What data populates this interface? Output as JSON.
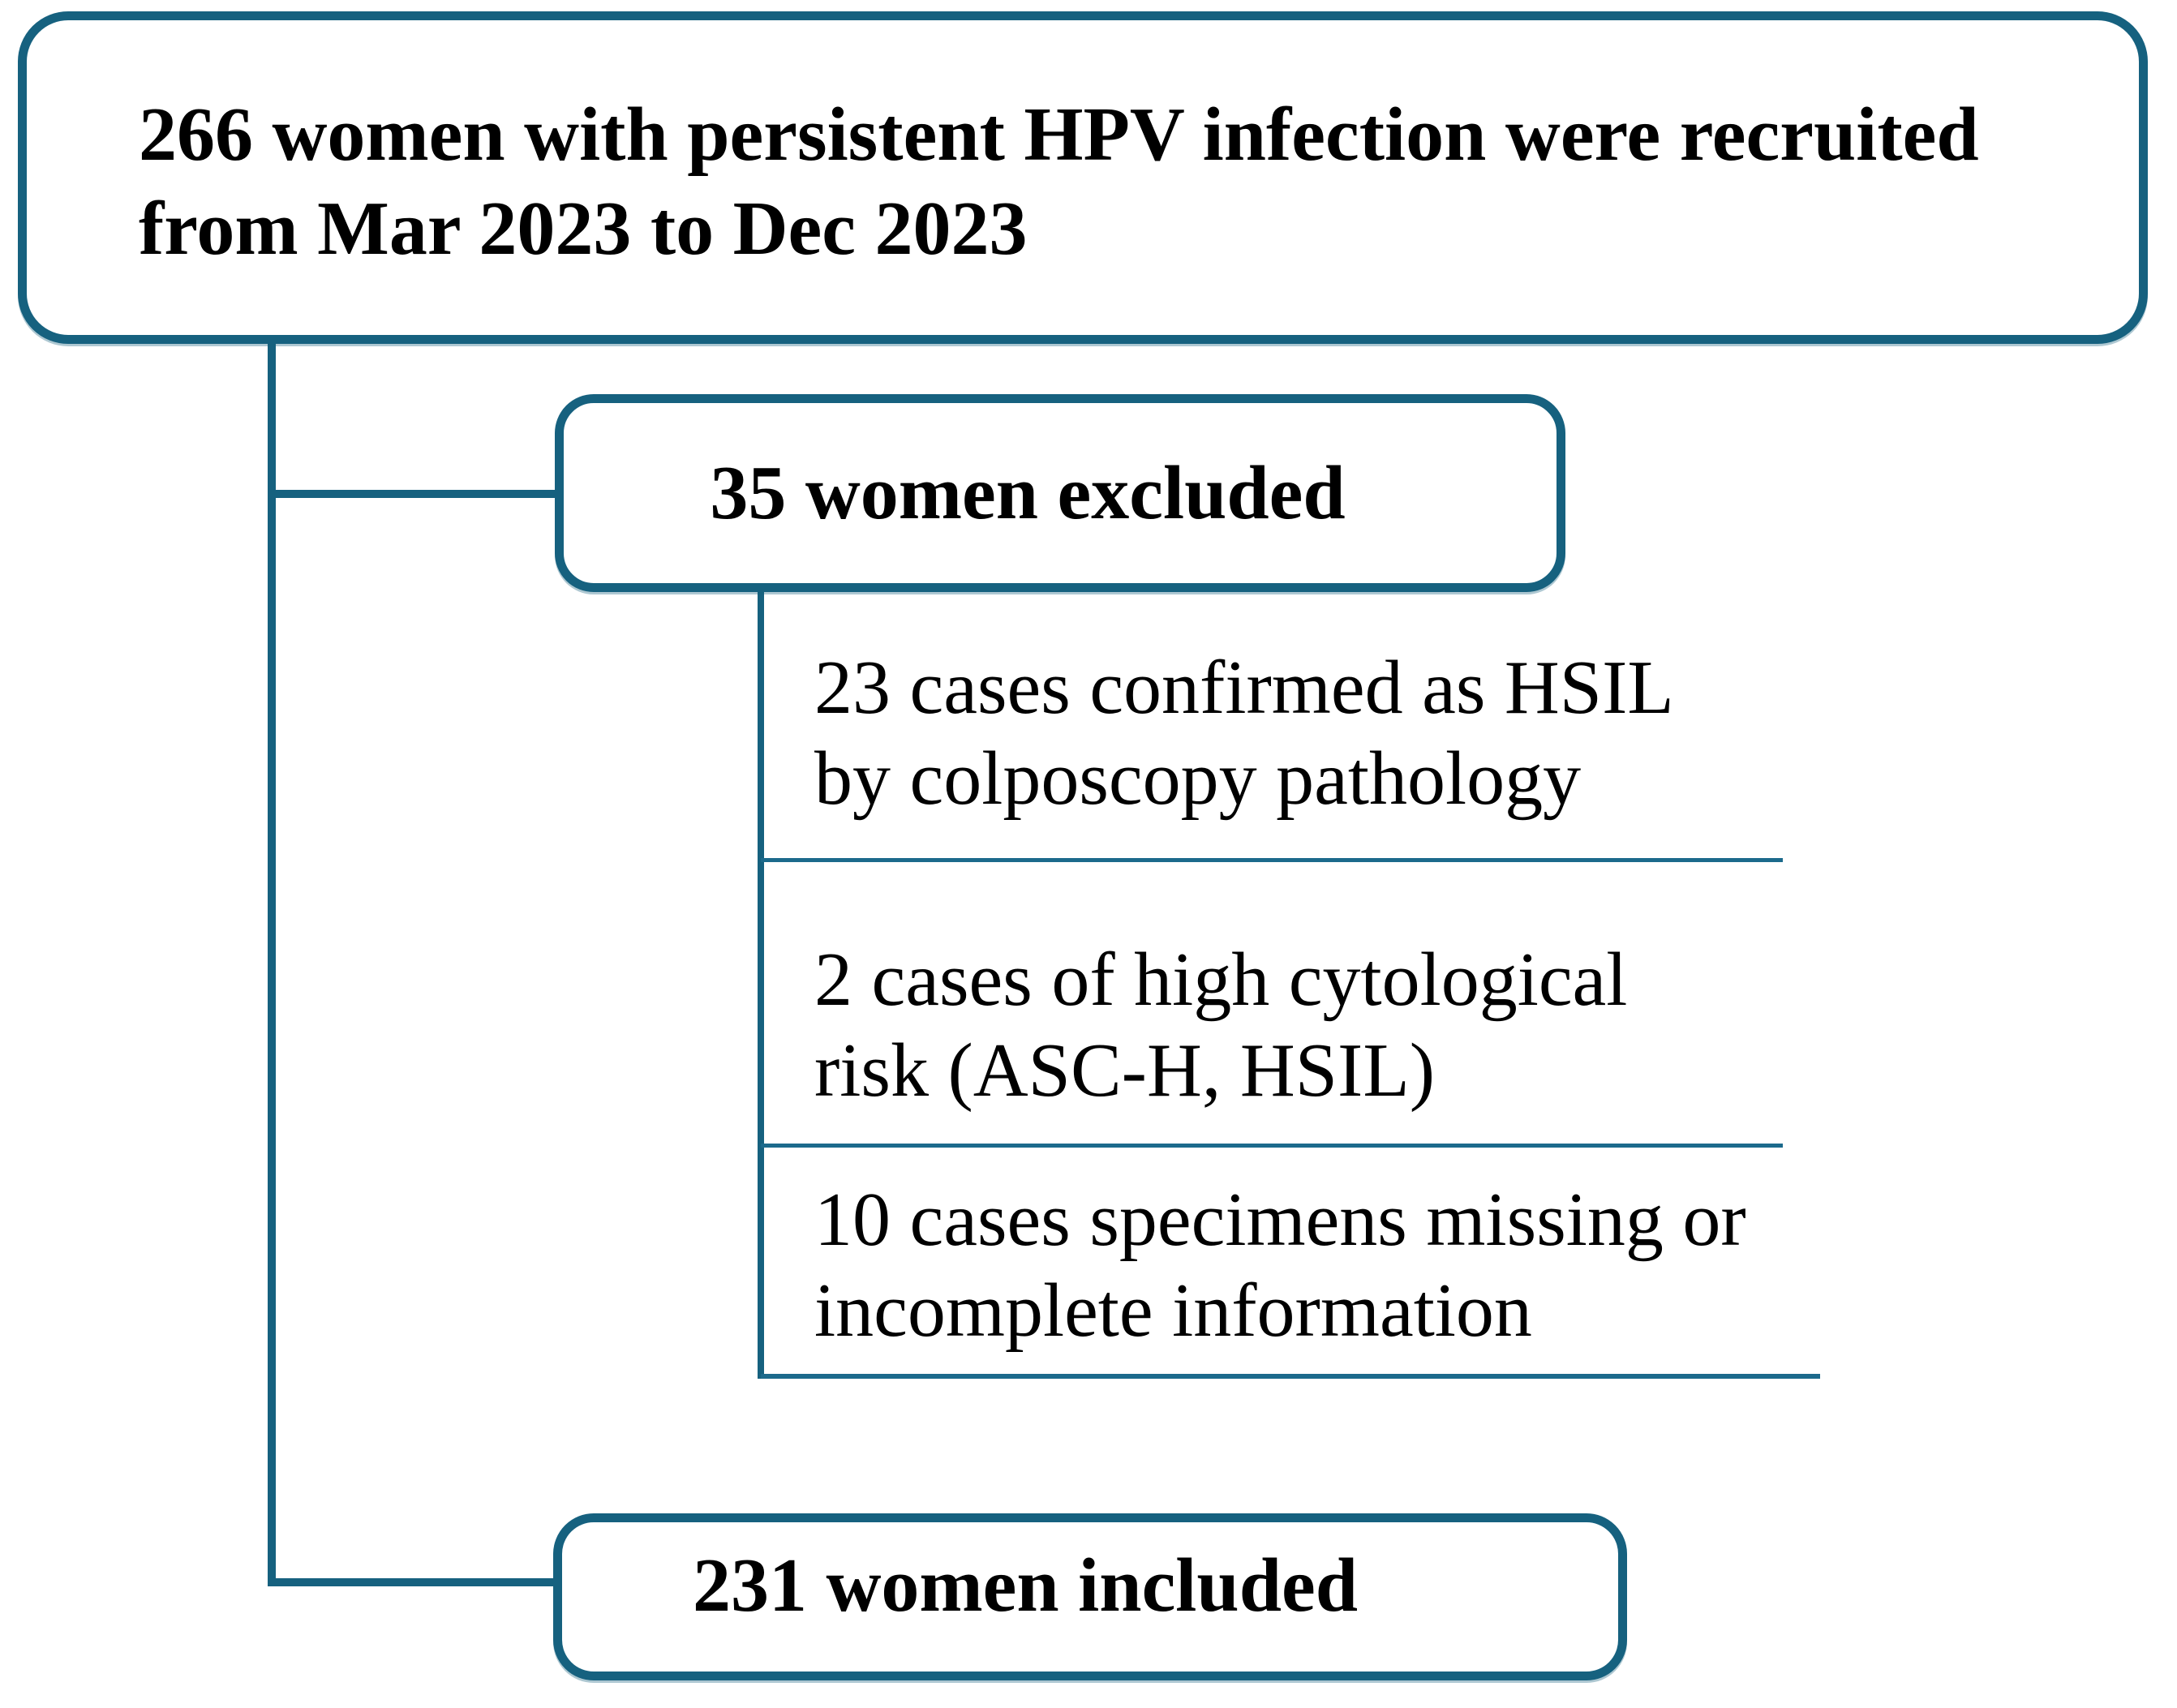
{
  "accent_color": "#16617F",
  "flow": {
    "top_box": {
      "lines": [
        "266 women with persistent HPV infection were recruited",
        "from Mar 2023 to Dec 2023"
      ]
    },
    "excluded_box": {
      "label": "35 women excluded"
    },
    "exclusion_reasons": [
      {
        "lines": [
          "23 cases confirmed as HSIL",
          "by colposcopy pathology"
        ]
      },
      {
        "lines": [
          "2 cases of high cytological",
          "risk (ASC-H, HSIL)"
        ]
      },
      {
        "lines": [
          "10 cases specimens missing or",
          "incomplete information"
        ]
      }
    ],
    "included_box": {
      "label": "231 women included"
    }
  }
}
